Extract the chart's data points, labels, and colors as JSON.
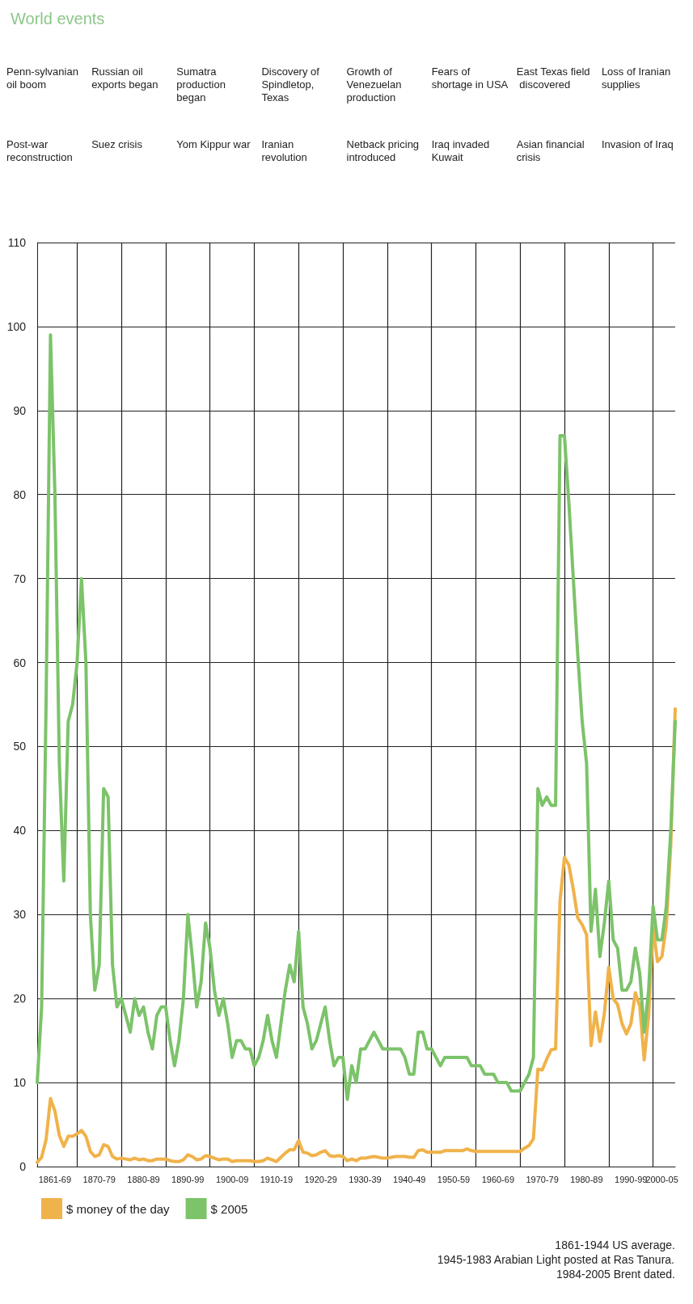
{
  "chart_data": {
    "type": "line",
    "title": "World events",
    "categories": [
      null,
      null,
      null,
      null,
      "1861-69",
      null,
      null,
      null,
      null,
      null,
      null,
      null,
      null,
      null,
      "1870-79",
      null,
      null,
      null,
      null,
      null,
      null,
      null,
      null,
      null,
      "1880-89",
      null,
      null,
      null,
      null,
      null,
      null,
      null,
      null,
      null,
      "1890-99",
      null,
      null,
      null,
      null,
      null,
      null,
      null,
      null,
      null,
      "1900-09",
      null,
      null,
      null,
      null,
      null,
      null,
      null,
      null,
      null,
      "1910-19",
      null,
      null,
      null,
      null,
      null,
      null,
      null,
      null,
      null,
      "1920-29",
      null,
      null,
      null,
      null,
      null,
      null,
      null,
      null,
      null,
      "1930-39",
      null,
      null,
      null,
      null,
      null,
      null,
      null,
      null,
      null,
      "1940-49",
      null,
      null,
      null,
      null,
      null,
      null,
      null,
      null,
      null,
      "1950-59",
      null,
      null,
      null,
      null,
      null,
      null,
      null,
      null,
      null,
      "1960-69",
      null,
      null,
      null,
      null,
      null,
      null,
      null,
      null,
      null,
      "1970-79",
      null,
      null,
      null,
      null,
      null,
      null,
      null,
      null,
      null,
      "1980-89",
      null,
      null,
      null,
      null,
      null,
      null,
      null,
      null,
      null,
      "1990-99",
      null,
      null,
      null,
      null,
      null,
      null,
      "2000-05",
      null,
      null,
      null
    ],
    "series": [
      {
        "name": "$ money of the day",
        "color": "#f0b24a",
        "values": [
          0.5,
          1.1,
          3.2,
          8.1,
          6.6,
          3.7,
          2.4,
          3.6,
          3.6,
          3.9,
          4.3,
          3.6,
          1.8,
          1.2,
          1.4,
          2.6,
          2.4,
          1.2,
          0.9,
          1.0,
          0.9,
          0.8,
          1.0,
          0.8,
          0.9,
          0.7,
          0.7,
          0.9,
          0.9,
          0.9,
          0.7,
          0.6,
          0.6,
          0.8,
          1.4,
          1.2,
          0.8,
          0.9,
          1.3,
          1.2,
          1.0,
          0.8,
          0.9,
          0.9,
          0.6,
          0.7,
          0.7,
          0.7,
          0.7,
          0.6,
          0.6,
          0.7,
          1.0,
          0.8,
          0.6,
          1.1,
          1.6,
          2.0,
          2.0,
          3.1,
          1.7,
          1.6,
          1.3,
          1.4,
          1.7,
          1.9,
          1.3,
          1.2,
          1.3,
          1.2,
          0.7,
          0.9,
          0.7,
          1.0,
          1.0,
          1.1,
          1.2,
          1.1,
          1.0,
          1.0,
          1.1,
          1.2,
          1.2,
          1.2,
          1.1,
          1.1,
          1.9,
          2.0,
          1.7,
          1.7,
          1.7,
          1.7,
          1.9,
          1.9,
          1.9,
          1.9,
          1.9,
          2.1,
          1.9,
          1.8,
          1.8,
          1.8,
          1.8,
          1.8,
          1.8,
          1.8,
          1.8,
          1.8,
          1.8,
          1.8,
          2.2,
          2.5,
          3.3,
          11.6,
          11.5,
          12.8,
          13.9,
          14.0,
          31.6,
          36.8,
          35.9,
          33.0,
          29.6,
          28.8,
          27.6,
          14.4,
          18.4,
          14.9,
          18.2,
          23.7,
          20.0,
          19.3,
          17.0,
          15.8,
          17.0,
          20.7,
          19.1,
          12.7,
          18.0,
          28.5,
          24.4,
          25.0,
          28.8,
          38.3,
          54.5
        ]
      },
      {
        "name": "$ 2005",
        "color": "#7cc36a",
        "values": [
          10,
          19,
          55,
          99,
          80,
          48,
          34,
          53,
          55,
          60,
          70,
          60,
          30,
          21,
          24,
          45,
          44,
          24,
          19,
          20,
          18,
          16,
          20,
          18,
          19,
          16,
          14,
          18,
          19,
          19,
          15,
          12,
          15,
          20,
          30,
          25,
          19,
          22,
          29,
          26,
          21,
          18,
          20,
          17,
          13,
          15,
          15,
          14,
          14,
          12,
          13,
          15,
          18,
          15,
          13,
          17,
          21,
          24,
          22,
          28,
          19,
          17,
          14,
          15,
          17,
          19,
          15,
          12,
          13,
          13,
          8,
          12,
          10,
          14,
          14,
          15,
          16,
          15,
          14,
          14,
          14,
          14,
          14,
          13,
          11,
          11,
          16,
          16,
          14,
          14,
          13,
          12,
          13,
          13,
          13,
          13,
          13,
          13,
          12,
          12,
          12,
          11,
          11,
          11,
          10,
          10,
          10,
          9,
          9,
          9,
          10,
          11,
          13,
          45,
          43,
          44,
          43,
          43,
          87,
          87,
          79,
          70,
          61,
          53,
          48,
          28,
          33,
          25,
          29,
          34,
          27,
          26,
          21,
          21,
          22,
          26,
          23,
          16,
          21,
          31,
          27,
          27,
          31,
          40,
          53
        ]
      }
    ],
    "ylim": [
      0,
      110
    ],
    "yticks": [
      0,
      10,
      20,
      30,
      40,
      50,
      60,
      70,
      80,
      90,
      100,
      110
    ],
    "grid": true,
    "legend": "bottom left",
    "annotations": [
      "Penn-sylvanian oil boom",
      "Russian oil exports began",
      "Sumatra production began",
      "Discovery of Spindletop, Texas",
      "Growth of Venezuelan production",
      "Fears of shortage in USA",
      "East Texas field discovered",
      "Loss of Iranian supplies",
      "Post-war reconstruction",
      "Suez crisis",
      "Yom Kippur war",
      "Iranian revolution",
      "Netback pricing introduced",
      "Iraq invaded Kuwait",
      "Asian financial crisis",
      "Invasion of Iraq",
      "1861-1944 US average.",
      "1945-1983 Arabian Light posted at Ras Tanura.",
      "1984-2005 Brent dated."
    ]
  }
}
